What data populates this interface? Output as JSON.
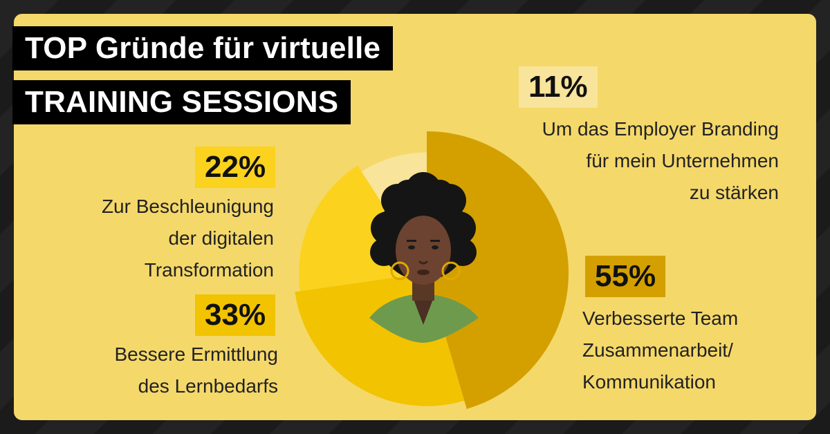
{
  "title": {
    "line1": "TOP Gründe für virtuelle",
    "line2": "TRAINING SESSIONS"
  },
  "colors": {
    "background": "#f4d86a",
    "slice_55": "#d4a000",
    "slice_33": "#f2c300",
    "slice_22": "#fbd21e",
    "slice_11": "#f8e49a",
    "badge_light": "#f8e49a"
  },
  "chart_data": {
    "type": "pie",
    "variant": "rose (radius varies per slice)",
    "title": "TOP Gründe für virtuelle TRAINING SESSIONS",
    "slices": [
      {
        "value": 55,
        "label_pct": "55%",
        "label": "Verbesserte Team Zusammenarbeit/ Kommunikation"
      },
      {
        "value": 33,
        "label_pct": "33%",
        "label": "Bessere Ermittlung des Lernbedarfs"
      },
      {
        "value": 22,
        "label_pct": "22%",
        "label": "Zur Beschleunigung der digitalen Transformation"
      },
      {
        "value": 11,
        "label_pct": "11%",
        "label": "Um das Employer Branding für mein Unternehmen zu stärken"
      }
    ]
  },
  "labels": {
    "s11": {
      "pct": "11%",
      "lines": [
        "Um das Employer Branding",
        "für mein Unternehmen",
        "zu stärken"
      ]
    },
    "s22": {
      "pct": "22%",
      "lines": [
        "Zur Beschleunigung",
        "der digitalen",
        "Transformation"
      ]
    },
    "s33": {
      "pct": "33%",
      "lines": [
        "Bessere Ermittlung",
        "des Lernbedarfs"
      ]
    },
    "s55": {
      "pct": "55%",
      "lines": [
        "Verbesserte Team",
        "Zusammenarbeit/",
        "Kommunikation"
      ]
    }
  },
  "illustration": {
    "icon": "woman-portrait-icon"
  }
}
